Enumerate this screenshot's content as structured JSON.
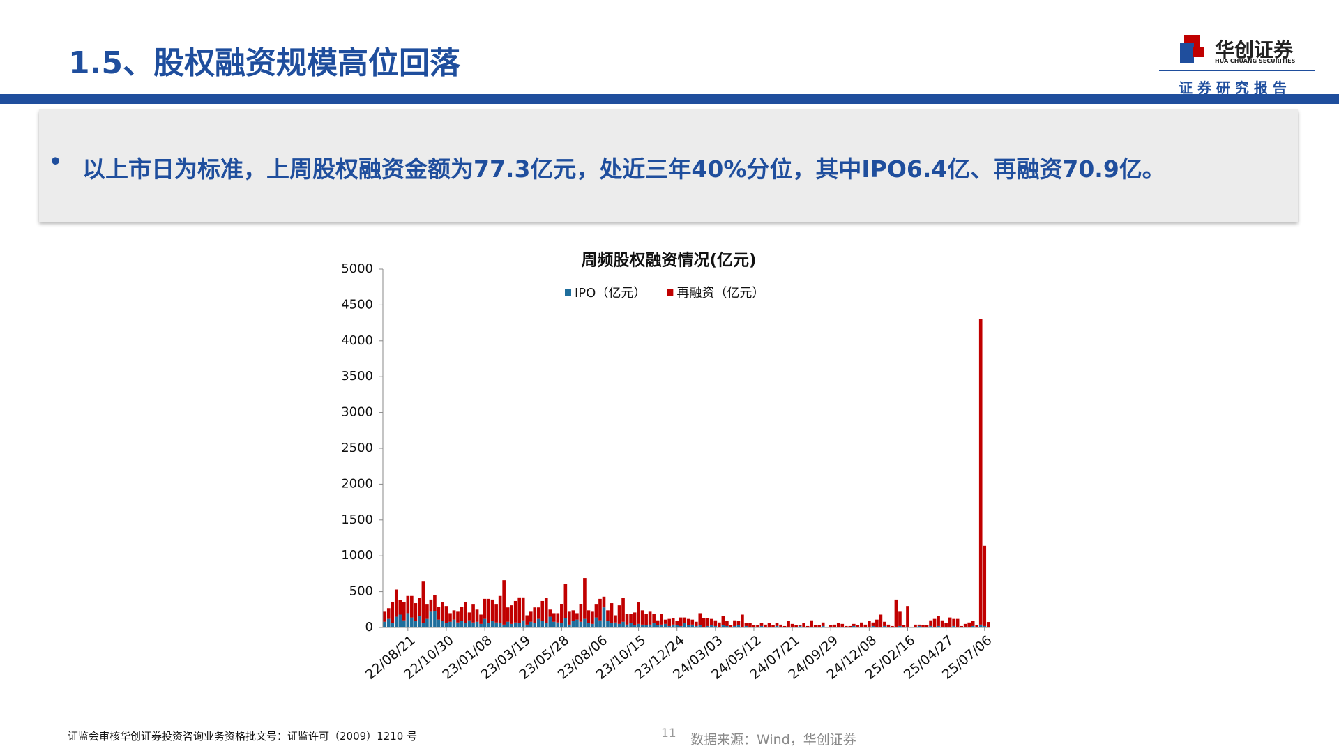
{
  "header": {
    "title": "1.5、股权融资规模高位回落",
    "logo_name": "华创证券",
    "logo_en": "HUA CHUANG SECURITIES",
    "report_label": "证 券 研 究 报 告"
  },
  "bullet": "以上市日为标准，上周股权融资金额为77.3亿元，处近三年40%分位，其中IPO6.4亿、再融资70.9亿。",
  "footer": {
    "license": "证监会审核华创证券投资咨询业务资格批文号：证监许可（2009）1210 号",
    "page": "11",
    "source": "数据来源：Wind，华创证券"
  },
  "chart_data": {
    "type": "stacked_bar",
    "title": "周频股权融资情况(亿元)",
    "categories": [
      null,
      null,
      null,
      null,
      null,
      null,
      "22/08/21",
      null,
      null,
      null,
      null,
      null,
      null,
      null,
      null,
      null,
      "22/10/30",
      null,
      null,
      null,
      null,
      null,
      null,
      null,
      null,
      null,
      "23/01/08",
      null,
      null,
      null,
      null,
      null,
      null,
      null,
      null,
      null,
      "23/03/19",
      null,
      null,
      null,
      null,
      null,
      null,
      null,
      null,
      null,
      "23/05/28",
      null,
      null,
      null,
      null,
      null,
      null,
      null,
      null,
      null,
      "23/08/06",
      null,
      null,
      null,
      null,
      null,
      null,
      null,
      null,
      null,
      "23/10/15",
      null,
      null,
      null,
      null,
      null,
      null,
      null,
      null,
      null,
      "23/12/24",
      null,
      null,
      null,
      null,
      null,
      null,
      null,
      null,
      null,
      "24/03/03",
      null,
      null,
      null,
      null,
      null,
      null,
      null,
      null,
      null,
      "24/05/12",
      null,
      null,
      null,
      null,
      null,
      null,
      null,
      null,
      null,
      "24/07/21",
      null,
      null,
      null,
      null,
      null,
      null,
      null,
      null,
      null,
      "24/09/29",
      null,
      null,
      null,
      null,
      null,
      null,
      null,
      null,
      null,
      "24/12/08",
      null,
      null,
      null,
      null,
      null,
      null,
      null,
      null,
      null,
      "25/02/16",
      null,
      null,
      null,
      null,
      null,
      null,
      null,
      null,
      null,
      "25/04/27",
      null,
      null,
      null,
      null,
      null,
      null,
      null,
      null,
      null,
      "25/07/06",
      null
    ],
    "series": [
      {
        "name": "IPO（亿元）",
        "color": "#1f6e9c",
        "values": [
          80,
          120,
          60,
          150,
          180,
          100,
          200,
          140,
          90,
          160,
          60,
          120,
          220,
          230,
          110,
          90,
          60,
          80,
          110,
          70,
          90,
          60,
          100,
          70,
          80,
          50,
          120,
          60,
          90,
          70,
          60,
          40,
          80,
          50,
          70,
          60,
          100,
          40,
          80,
          60,
          120,
          90,
          60,
          150,
          80,
          70,
          60,
          130,
          40,
          90,
          110,
          80,
          120,
          60,
          50,
          140,
          100,
          280,
          90,
          60,
          70,
          50,
          80,
          40,
          60,
          30,
          50,
          40,
          30,
          40,
          60,
          30,
          40,
          50,
          20,
          40,
          30,
          20,
          60,
          30,
          40,
          20,
          30,
          10,
          20,
          30,
          20,
          10,
          30,
          20,
          10,
          20,
          30,
          10,
          20,
          10,
          0,
          10,
          20,
          10,
          10,
          0,
          20,
          10,
          0,
          10,
          10,
          0,
          20,
          10,
          0,
          10,
          0,
          10,
          20,
          0,
          10,
          10,
          0,
          10,
          10,
          0,
          20,
          10,
          10,
          0,
          10,
          20,
          10,
          10,
          20,
          10,
          0,
          10,
          20,
          10,
          10,
          0,
          10,
          20,
          10,
          0,
          20,
          10,
          20,
          10,
          0,
          10,
          20,
          10,
          0,
          10,
          10,
          20,
          10,
          40,
          20,
          6.4
        ]
      },
      {
        "name": "再融资（亿元）",
        "color": "#c00000",
        "values": [
          140,
          150,
          300,
          380,
          200,
          260,
          240,
          300,
          250,
          250,
          580,
          200,
          170,
          220,
          180,
          260,
          240,
          120,
          130,
          150,
          200,
          300,
          110,
          250,
          170,
          130,
          280,
          340,
          300,
          250,
          380,
          620,
          200,
          260,
          300,
          360,
          320,
          130,
          140,
          220,
          160,
          280,
          350,
          100,
          120,
          130,
          270,
          480,
          180,
          150,
          90,
          250,
          570,
          180,
          170,
          180,
          300,
          150,
          150,
          280,
          100,
          260,
          330,
          150,
          130,
          180,
          300,
          200,
          160,
          180,
          130,
          70,
          150,
          60,
          100,
          90,
          60,
          120,
          80,
          90,
          70,
          60,
          170,
          120,
          110,
          90,
          80,
          60,
          130,
          70,
          20,
          80,
          60,
          170,
          40,
          50,
          30,
          20,
          40,
          30,
          50,
          30,
          40,
          30,
          20,
          80,
          40,
          30,
          10,
          50,
          20,
          90,
          30,
          20,
          50,
          10,
          20,
          30,
          60,
          40,
          10,
          20,
          30,
          20,
          60,
          40,
          80,
          50,
          100,
          170,
          60,
          30,
          20,
          380,
          200,
          20,
          290,
          10,
          30,
          20,
          20,
          30,
          80,
          110,
          140,
          90,
          60,
          130,
          100,
          110,
          20,
          40,
          60,
          70,
          20,
          4260,
          1120,
          70.9
        ]
      }
    ],
    "ylim": [
      0,
      5000
    ],
    "yticks": [
      0,
      500,
      1000,
      1500,
      2000,
      2500,
      3000,
      3500,
      4000,
      4500,
      5000
    ],
    "legend": "top"
  }
}
